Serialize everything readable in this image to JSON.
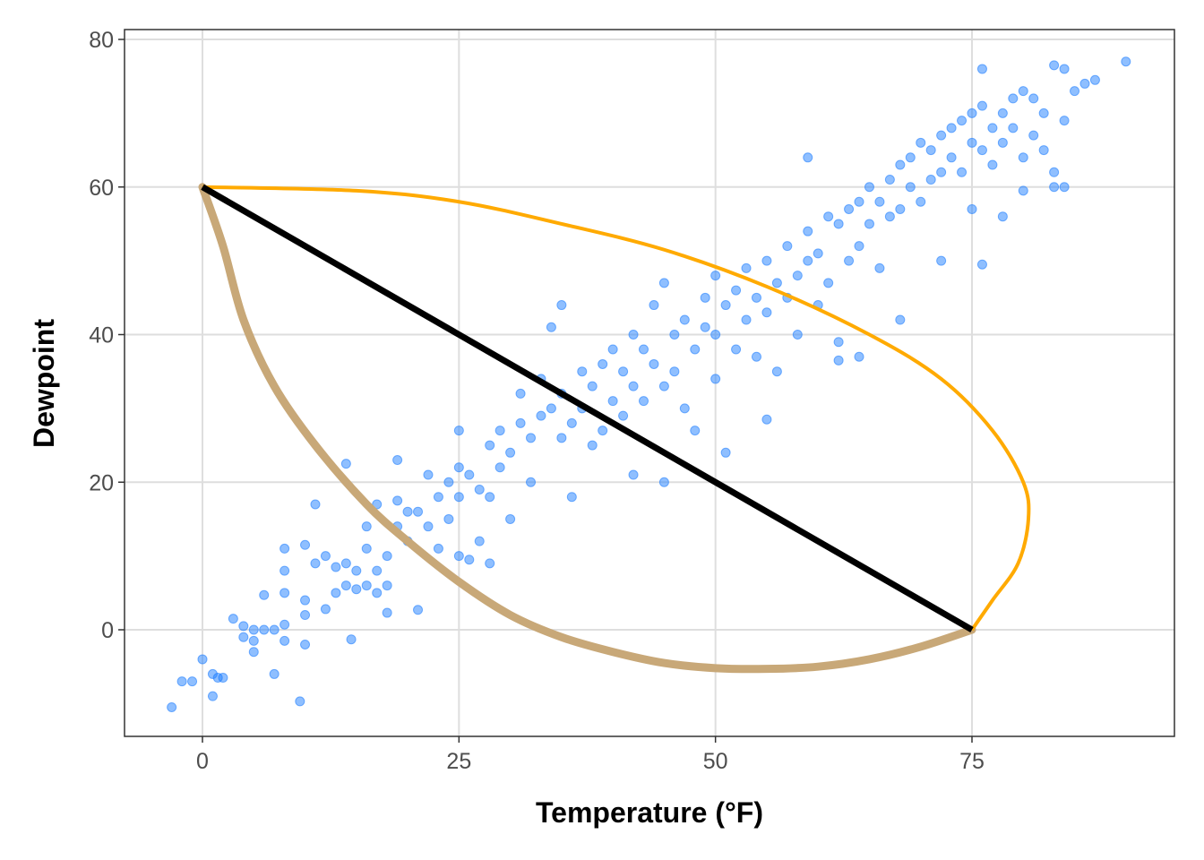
{
  "chart_data": {
    "type": "scatter",
    "xlabel": "Temperature (°F)",
    "ylabel": "Dewpoint",
    "xlim": [
      -7.6,
      94.7
    ],
    "ylim": [
      -14.4,
      81.4
    ],
    "xticks": [
      0,
      25,
      50,
      75
    ],
    "yticks": [
      0,
      20,
      40,
      60,
      80
    ],
    "grid": true,
    "colors": {
      "points": "#1f7fff",
      "orange_curve": "#ffaa00",
      "tan_curve": "#c8a878",
      "segment": "#000000"
    },
    "points": [
      [
        -3,
        -10.5
      ],
      [
        -2,
        -7
      ],
      [
        -1,
        -7
      ],
      [
        0,
        -4
      ],
      [
        1,
        -6
      ],
      [
        1,
        -9
      ],
      [
        2,
        -6.5
      ],
      [
        1.5,
        -6.5
      ],
      [
        3,
        1.5
      ],
      [
        4,
        0.5
      ],
      [
        4,
        -1
      ],
      [
        5,
        -3
      ],
      [
        5,
        0
      ],
      [
        5,
        -1.5
      ],
      [
        6,
        0
      ],
      [
        6,
        4.7
      ],
      [
        7,
        -6
      ],
      [
        7,
        0
      ],
      [
        8,
        -1.5
      ],
      [
        8,
        0.7
      ],
      [
        8,
        5
      ],
      [
        8,
        8
      ],
      [
        8,
        11
      ],
      [
        10,
        11.5
      ],
      [
        10,
        4
      ],
      [
        10,
        2
      ],
      [
        10,
        -2
      ],
      [
        9.5,
        -9.7
      ],
      [
        11,
        17
      ],
      [
        11,
        9
      ],
      [
        12,
        10
      ],
      [
        12,
        2.8
      ],
      [
        13,
        5
      ],
      [
        13,
        8.5
      ],
      [
        14,
        9
      ],
      [
        14,
        6
      ],
      [
        14,
        22.5
      ],
      [
        14.5,
        -1.3
      ],
      [
        15,
        8
      ],
      [
        15,
        5.5
      ],
      [
        16,
        11
      ],
      [
        16,
        14
      ],
      [
        16,
        6
      ],
      [
        17,
        17
      ],
      [
        17,
        8
      ],
      [
        17,
        5
      ],
      [
        18,
        2.3
      ],
      [
        18,
        6
      ],
      [
        18,
        10
      ],
      [
        19,
        17.5
      ],
      [
        19,
        23
      ],
      [
        19,
        14
      ],
      [
        20,
        16
      ],
      [
        20,
        12
      ],
      [
        21,
        16
      ],
      [
        21,
        2.7
      ],
      [
        22,
        21
      ],
      [
        22,
        14
      ],
      [
        23,
        18
      ],
      [
        23,
        11
      ],
      [
        24,
        20
      ],
      [
        24,
        15
      ],
      [
        25,
        27
      ],
      [
        25,
        22
      ],
      [
        25,
        18
      ],
      [
        25,
        10
      ],
      [
        26,
        21
      ],
      [
        26,
        9.5
      ],
      [
        27,
        19
      ],
      [
        27,
        12
      ],
      [
        28,
        25
      ],
      [
        28,
        18
      ],
      [
        28,
        9
      ],
      [
        29,
        27
      ],
      [
        29,
        22
      ],
      [
        30,
        24
      ],
      [
        30,
        15
      ],
      [
        31,
        28
      ],
      [
        31,
        32
      ],
      [
        32,
        26
      ],
      [
        32,
        20
      ],
      [
        33,
        34
      ],
      [
        33,
        29
      ],
      [
        34,
        30
      ],
      [
        34,
        41
      ],
      [
        35,
        32
      ],
      [
        35,
        26
      ],
      [
        35,
        44
      ],
      [
        36,
        28
      ],
      [
        36,
        18
      ],
      [
        37,
        35
      ],
      [
        37,
        30
      ],
      [
        38,
        33
      ],
      [
        38,
        25
      ],
      [
        39,
        36
      ],
      [
        39,
        27
      ],
      [
        40,
        38
      ],
      [
        40,
        31
      ],
      [
        41,
        35
      ],
      [
        41,
        29
      ],
      [
        42,
        40
      ],
      [
        42,
        33
      ],
      [
        42,
        21
      ],
      [
        43,
        38
      ],
      [
        43,
        31
      ],
      [
        44,
        44
      ],
      [
        44,
        36
      ],
      [
        45,
        47
      ],
      [
        45,
        33
      ],
      [
        45,
        20
      ],
      [
        46,
        40
      ],
      [
        46,
        35
      ],
      [
        47,
        42
      ],
      [
        47,
        30
      ],
      [
        48,
        38
      ],
      [
        48,
        27
      ],
      [
        49,
        45
      ],
      [
        49,
        41
      ],
      [
        50,
        48
      ],
      [
        50,
        40
      ],
      [
        50,
        34
      ],
      [
        51,
        44
      ],
      [
        51,
        24
      ],
      [
        52,
        46
      ],
      [
        52,
        38
      ],
      [
        53,
        49
      ],
      [
        53,
        42
      ],
      [
        54,
        45
      ],
      [
        54,
        37
      ],
      [
        55,
        50
      ],
      [
        55,
        43
      ],
      [
        55,
        28.5
      ],
      [
        56,
        47
      ],
      [
        56,
        35
      ],
      [
        57,
        52
      ],
      [
        57,
        45
      ],
      [
        58,
        48
      ],
      [
        58,
        40
      ],
      [
        59,
        64
      ],
      [
        59,
        50
      ],
      [
        59,
        54
      ],
      [
        60,
        51
      ],
      [
        60,
        44
      ],
      [
        61,
        56
      ],
      [
        61,
        47
      ],
      [
        62,
        55
      ],
      [
        62,
        39
      ],
      [
        62,
        36.5
      ],
      [
        63,
        57
      ],
      [
        63,
        50
      ],
      [
        64,
        58
      ],
      [
        64,
        52
      ],
      [
        64,
        37
      ],
      [
        65,
        60
      ],
      [
        65,
        55
      ],
      [
        66,
        58
      ],
      [
        66,
        49
      ],
      [
        67,
        61
      ],
      [
        67,
        56
      ],
      [
        68,
        63
      ],
      [
        68,
        57
      ],
      [
        68,
        42
      ],
      [
        69,
        64
      ],
      [
        69,
        60
      ],
      [
        70,
        66
      ],
      [
        70,
        58
      ],
      [
        71,
        65
      ],
      [
        71,
        61
      ],
      [
        72,
        67
      ],
      [
        72,
        62
      ],
      [
        72,
        50
      ],
      [
        73,
        68
      ],
      [
        73,
        64
      ],
      [
        74,
        69
      ],
      [
        74,
        62
      ],
      [
        75,
        70
      ],
      [
        75,
        66
      ],
      [
        75,
        57
      ],
      [
        76,
        76
      ],
      [
        76,
        71
      ],
      [
        76,
        65
      ],
      [
        76,
        49.5
      ],
      [
        77,
        68
      ],
      [
        77,
        63
      ],
      [
        78,
        70
      ],
      [
        78,
        66
      ],
      [
        78,
        56
      ],
      [
        79,
        72
      ],
      [
        79,
        68
      ],
      [
        80,
        73
      ],
      [
        80,
        64
      ],
      [
        80,
        59.5
      ],
      [
        81,
        72
      ],
      [
        81,
        67
      ],
      [
        82,
        70
      ],
      [
        82,
        65
      ],
      [
        83,
        76.5
      ],
      [
        83,
        62
      ],
      [
        83,
        60
      ],
      [
        84,
        76
      ],
      [
        84,
        69
      ],
      [
        84,
        60
      ],
      [
        85,
        73
      ],
      [
        86,
        74
      ],
      [
        87,
        74.5
      ],
      [
        90,
        77
      ]
    ],
    "segment": {
      "from": [
        0,
        60
      ],
      "to": [
        75,
        0
      ]
    },
    "orange_curve": [
      [
        0,
        60
      ],
      [
        15,
        59.5
      ],
      [
        25,
        58
      ],
      [
        35,
        55
      ],
      [
        45,
        51.5
      ],
      [
        55,
        46.5
      ],
      [
        65,
        40
      ],
      [
        72,
        34
      ],
      [
        77,
        27
      ],
      [
        80,
        20
      ],
      [
        80.5,
        15
      ],
      [
        79.5,
        9
      ],
      [
        77,
        4
      ],
      [
        75,
        0
      ]
    ],
    "tan_curve": [
      [
        0,
        60
      ],
      [
        2,
        52
      ],
      [
        4,
        42
      ],
      [
        7,
        33
      ],
      [
        11,
        25
      ],
      [
        16,
        17
      ],
      [
        20,
        12
      ],
      [
        25,
        6.5
      ],
      [
        30,
        2
      ],
      [
        35,
        -1
      ],
      [
        40,
        -3
      ],
      [
        45,
        -4.5
      ],
      [
        50,
        -5.2
      ],
      [
        55,
        -5.3
      ],
      [
        60,
        -5
      ],
      [
        65,
        -4
      ],
      [
        70,
        -2.3
      ],
      [
        75,
        0
      ]
    ]
  }
}
